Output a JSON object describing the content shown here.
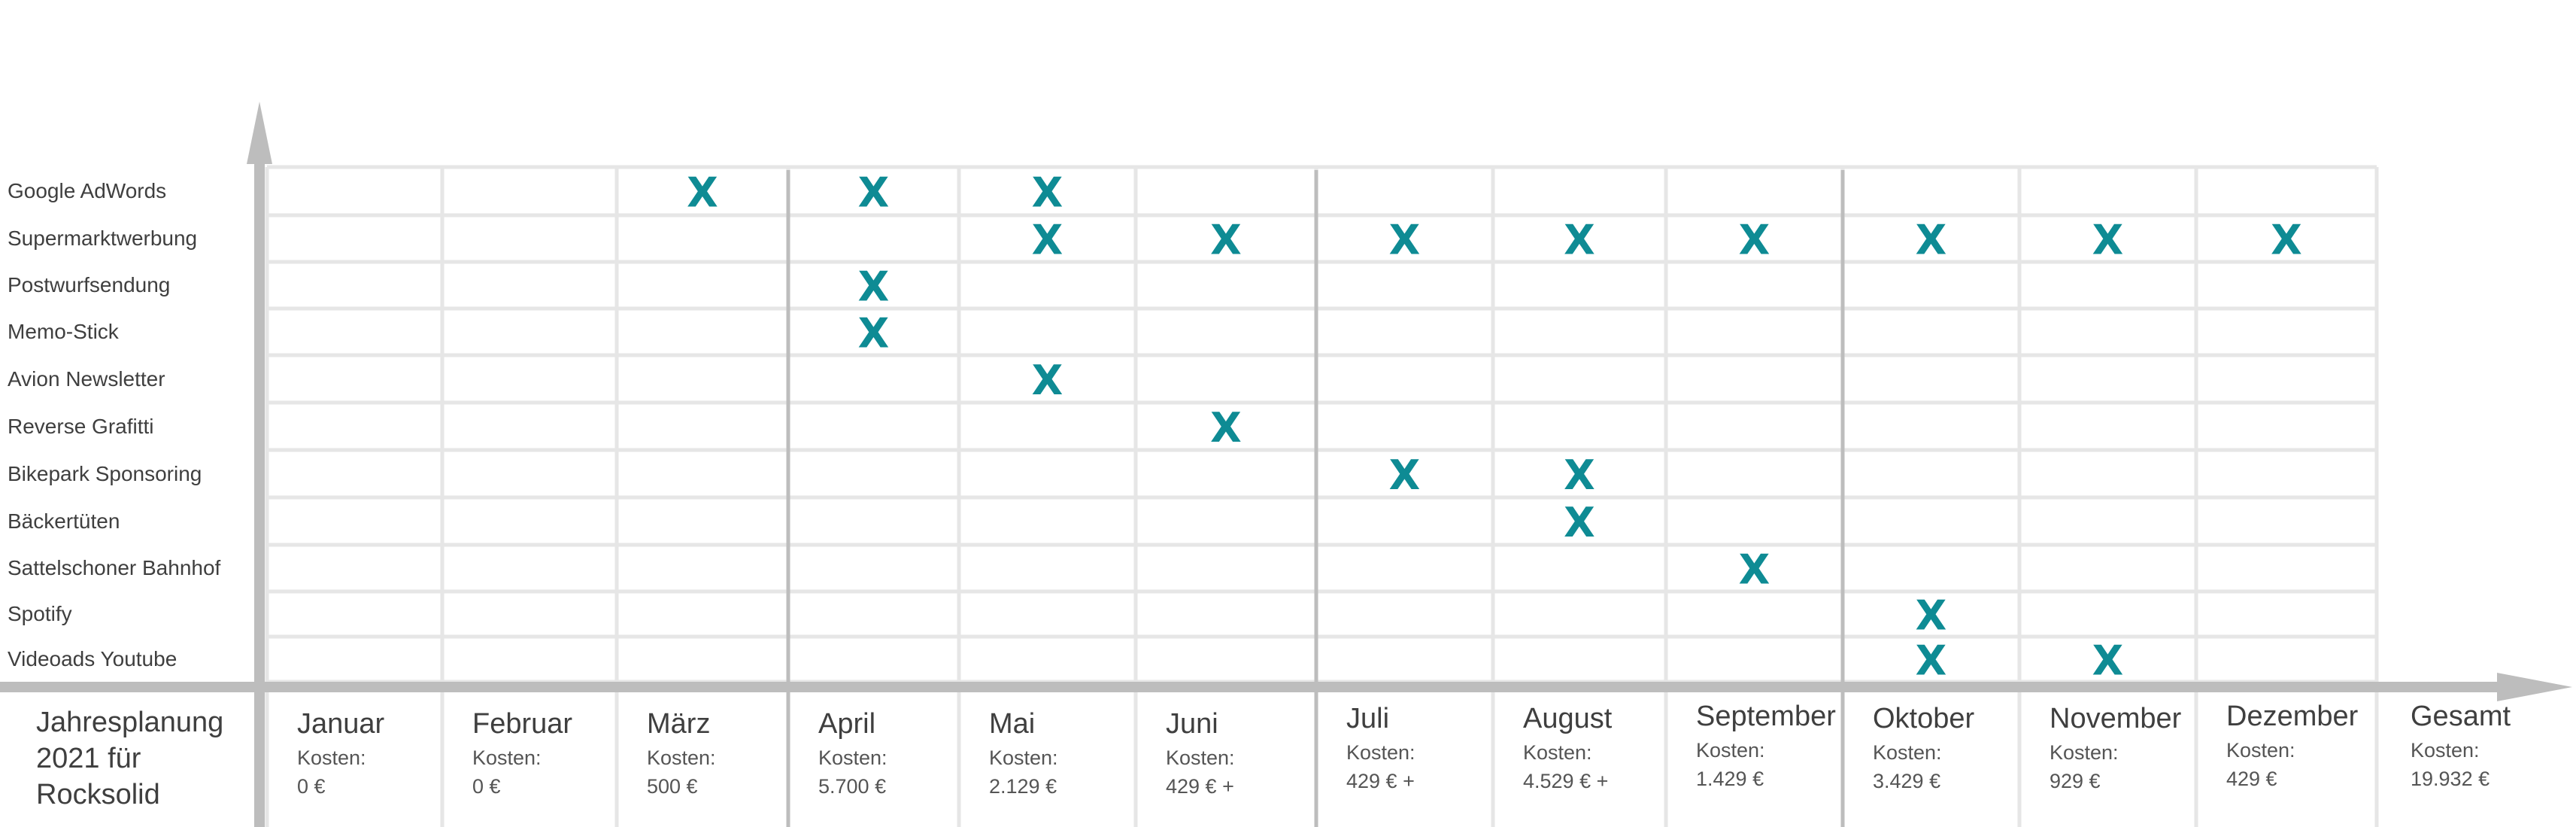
{
  "title_lines": [
    "Jahresplanung",
    "2021 für",
    "Rocksolid"
  ],
  "cost_label": "Kosten:",
  "mark_symbol": "X",
  "mark_color": "#0e8b94",
  "grid_color": "#e6e6e6",
  "axis_color": "#bdbdbd",
  "chart_data": {
    "type": "table",
    "rows": [
      "Google AdWords",
      "Supermarktwerbung",
      "Postwurfsendung",
      "Memo-Stick",
      "Avion Newsletter",
      "Reverse Grafitti",
      "Bikepark Sponsoring",
      "Bäckertüten",
      "Sattelschoner Bahnhof",
      "Spotify",
      "Videoads Youtube"
    ],
    "months": [
      {
        "name": "Januar",
        "cost": "0 €"
      },
      {
        "name": "Februar",
        "cost": "0 €"
      },
      {
        "name": "März",
        "cost": "500 €"
      },
      {
        "name": "April",
        "cost": "5.700 €"
      },
      {
        "name": "Mai",
        "cost": "2.129 €"
      },
      {
        "name": "Juni",
        "cost": "429 € +"
      },
      {
        "name": "Juli",
        "cost": "429 € +"
      },
      {
        "name": "August",
        "cost": "4.529 € +"
      },
      {
        "name": "September",
        "cost": "1.429 €"
      },
      {
        "name": "Oktober",
        "cost": "3.429 €"
      },
      {
        "name": "November",
        "cost": "929 €"
      },
      {
        "name": "Dezember",
        "cost": "429 €"
      }
    ],
    "total": {
      "name": "Gesamt",
      "cost": "19.932 €"
    },
    "quarter_dividers_after_months": [
      "März",
      "Juni",
      "September"
    ],
    "schedule": [
      {
        "row": "Google AdWords",
        "months": [
          "März",
          "April",
          "Mai"
        ]
      },
      {
        "row": "Supermarktwerbung",
        "months": [
          "Mai",
          "Juni",
          "Juli",
          "August",
          "September",
          "Oktober",
          "November",
          "Dezember"
        ]
      },
      {
        "row": "Postwurfsendung",
        "months": [
          "April"
        ]
      },
      {
        "row": "Memo-Stick",
        "months": [
          "April"
        ]
      },
      {
        "row": "Avion Newsletter",
        "months": [
          "Mai"
        ]
      },
      {
        "row": "Reverse Grafitti",
        "months": [
          "Juni"
        ]
      },
      {
        "row": "Bikepark Sponsoring",
        "months": [
          "Juli",
          "August"
        ]
      },
      {
        "row": "Bäckertüten",
        "months": [
          "August"
        ]
      },
      {
        "row": "Sattelschoner Bahnhof",
        "months": [
          "September"
        ]
      },
      {
        "row": "Spotify",
        "months": [
          "Oktober"
        ]
      },
      {
        "row": "Videoads Youtube",
        "months": [
          "Oktober",
          "November"
        ]
      }
    ]
  }
}
